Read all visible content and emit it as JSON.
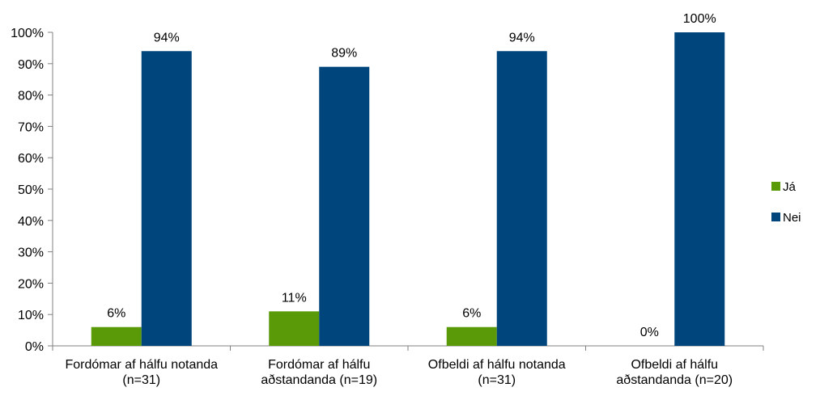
{
  "chart_data": {
    "type": "bar",
    "categories": [
      [
        "Fordómar af hálfu notanda",
        "(n=31)"
      ],
      [
        "Fordómar af hálfu",
        "aðstandanda (n=19)"
      ],
      [
        "Ofbeldi af hálfu notanda",
        "(n=31)"
      ],
      [
        "Ofbeldi af hálfu",
        "aðstandanda (n=20)"
      ]
    ],
    "series": [
      {
        "name": "Já",
        "color": "#5a9a08",
        "values": [
          6,
          11,
          6,
          0
        ],
        "labels": [
          "6%",
          "11%",
          "6%",
          "0%"
        ]
      },
      {
        "name": "Nei",
        "color": "#00457c",
        "values": [
          94,
          89,
          94,
          100
        ],
        "labels": [
          "94%",
          "89%",
          "94%",
          "100%"
        ]
      }
    ],
    "yticks": [
      "0%",
      "10%",
      "20%",
      "30%",
      "40%",
      "50%",
      "60%",
      "70%",
      "80%",
      "90%",
      "100%"
    ],
    "ylim": [
      0,
      100
    ],
    "xlabel": "",
    "ylabel": "",
    "legend_position": "right",
    "grid": false
  }
}
